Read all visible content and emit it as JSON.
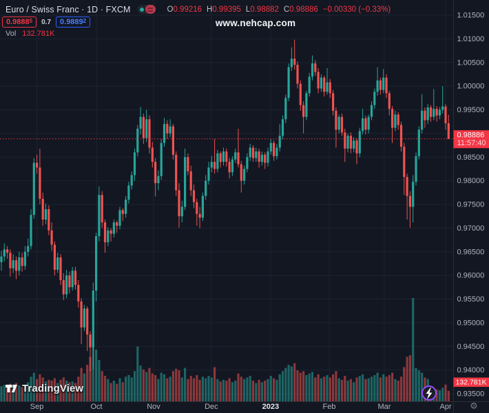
{
  "header": {
    "symbol_title": "Euro / Swiss Franc · 1D · FXCM",
    "ohlc": {
      "o_label": "O",
      "o": "0.99216",
      "h_label": "H",
      "h": "0.99395",
      "l_label": "L",
      "l": "0.98882",
      "c_label": "C",
      "c": "0.98886",
      "change": "−0.00330 (−0.33%)"
    },
    "bid": "0.9888",
    "bid_sup": "5",
    "spread": "0.7",
    "ask": "0.9889",
    "ask_sup": "2",
    "vol_label": "Vol",
    "vol_value": "132.781K",
    "watermark": "www.nehcap.com"
  },
  "logo": {
    "text": "TradingView"
  },
  "colors": {
    "background": "#131722",
    "up": "#26a69a",
    "down": "#ef5350",
    "grid": "#1d2332",
    "axis_border": "#2a2e39",
    "axis_text": "#b2b5be",
    "year_text": "#e4e7ed",
    "badge_red": "#f23645",
    "accent_blue": "#2962ff",
    "gear_gray": "#787b86",
    "lightning_purple": "#9747ff"
  },
  "chart_data": {
    "type": "candlestick",
    "symbol": "Euro / Swiss Franc",
    "timeframe": "1D",
    "exchange": "FXCM",
    "legend_toggle": "candle-color-toggle",
    "price_range": {
      "min": 0.935,
      "max": 1.015,
      "tick_step": 0.005
    },
    "price_ticks": [
      "1.01500",
      "1.01000",
      "1.00500",
      "1.00000",
      "0.99500",
      "0.99000",
      "0.98500",
      "0.98000",
      "0.97500",
      "0.97000",
      "0.96500",
      "0.96000",
      "0.95500",
      "0.95000",
      "0.94500",
      "0.94000",
      "0.93500"
    ],
    "months": [
      {
        "label": "Sep",
        "bar": 12.0
      },
      {
        "label": "Oct",
        "bar": 32.1
      },
      {
        "label": "Nov",
        "bar": 51.4
      },
      {
        "label": "Dec",
        "bar": 70.9
      },
      {
        "label": "2023",
        "bar": 90.9,
        "year": true
      },
      {
        "label": "Feb",
        "bar": 110.7
      },
      {
        "label": "Mar",
        "bar": 129.3
      },
      {
        "label": "Apr",
        "bar": 150.0
      }
    ],
    "last_price": 0.98886,
    "last_change_direction": "down",
    "countdown": "11:57:40",
    "volume_current_label": "132.781K",
    "current_bar_ohlc": {
      "open": 0.99216,
      "high": 0.99395,
      "low": 0.98882,
      "close": 0.98886,
      "change": -0.0033,
      "change_pct": -0.33
    },
    "columns": [
      "open",
      "high",
      "low",
      "close",
      "volume_k"
    ],
    "candles": [
      [
        0.9628,
        0.9652,
        0.961,
        0.964,
        190
      ],
      [
        0.964,
        0.9668,
        0.963,
        0.9655,
        205
      ],
      [
        0.9655,
        0.9662,
        0.9635,
        0.9648,
        175
      ],
      [
        0.9648,
        0.9655,
        0.9598,
        0.9615,
        220
      ],
      [
        0.9615,
        0.9645,
        0.9605,
        0.9632,
        185
      ],
      [
        0.9632,
        0.964,
        0.9592,
        0.961,
        230
      ],
      [
        0.961,
        0.965,
        0.96,
        0.9638,
        200
      ],
      [
        0.9638,
        0.9648,
        0.9608,
        0.962,
        180
      ],
      [
        0.962,
        0.9662,
        0.9612,
        0.965,
        210
      ],
      [
        0.965,
        0.9678,
        0.964,
        0.9662,
        240
      ],
      [
        0.9662,
        0.974,
        0.9655,
        0.9728,
        310
      ],
      [
        0.9728,
        0.9848,
        0.972,
        0.9838,
        360
      ],
      [
        0.9838,
        0.9855,
        0.9815,
        0.9828,
        280
      ],
      [
        0.9828,
        0.9868,
        0.975,
        0.9762,
        340
      ],
      [
        0.9762,
        0.9775,
        0.9705,
        0.9718,
        300
      ],
      [
        0.9718,
        0.9752,
        0.9708,
        0.974,
        250
      ],
      [
        0.974,
        0.9748,
        0.9685,
        0.9695,
        270
      ],
      [
        0.9695,
        0.9712,
        0.9652,
        0.9665,
        260
      ],
      [
        0.9665,
        0.9672,
        0.96,
        0.9612,
        290
      ],
      [
        0.9612,
        0.9648,
        0.9605,
        0.9638,
        230
      ],
      [
        0.9638,
        0.9645,
        0.958,
        0.959,
        270
      ],
      [
        0.959,
        0.9605,
        0.9548,
        0.956,
        300
      ],
      [
        0.956,
        0.9612,
        0.9552,
        0.96,
        260
      ],
      [
        0.96,
        0.9608,
        0.9562,
        0.9575,
        240
      ],
      [
        0.9575,
        0.9618,
        0.9568,
        0.961,
        250
      ],
      [
        0.961,
        0.9618,
        0.957,
        0.958,
        230
      ],
      [
        0.958,
        0.959,
        0.9532,
        0.9545,
        310
      ],
      [
        0.9545,
        0.9552,
        0.9455,
        0.949,
        420
      ],
      [
        0.949,
        0.9538,
        0.9482,
        0.953,
        350
      ],
      [
        0.953,
        0.9535,
        0.944,
        0.9475,
        460
      ],
      [
        0.9475,
        0.9482,
        0.9398,
        0.9448,
        560
      ],
      [
        0.9448,
        0.9585,
        0.9402,
        0.9568,
        780
      ],
      [
        0.9568,
        0.969,
        0.9545,
        0.9683,
        650
      ],
      [
        0.9683,
        0.9788,
        0.9672,
        0.977,
        520
      ],
      [
        0.977,
        0.9778,
        0.97,
        0.9712,
        380
      ],
      [
        0.9712,
        0.9718,
        0.9648,
        0.967,
        320
      ],
      [
        0.967,
        0.9702,
        0.9662,
        0.9695,
        280
      ],
      [
        0.9695,
        0.97,
        0.9672,
        0.9688,
        230
      ],
      [
        0.9688,
        0.9718,
        0.968,
        0.9712,
        260
      ],
      [
        0.9712,
        0.9716,
        0.969,
        0.9705,
        220
      ],
      [
        0.9705,
        0.9745,
        0.9698,
        0.9738,
        290
      ],
      [
        0.9738,
        0.9742,
        0.9715,
        0.973,
        240
      ],
      [
        0.973,
        0.9768,
        0.9722,
        0.976,
        310
      ],
      [
        0.976,
        0.9798,
        0.9752,
        0.979,
        330
      ],
      [
        0.979,
        0.982,
        0.9782,
        0.9812,
        300
      ],
      [
        0.9812,
        0.9868,
        0.98,
        0.986,
        380
      ],
      [
        0.986,
        0.9918,
        0.9852,
        0.991,
        690
      ],
      [
        0.991,
        0.9956,
        0.9898,
        0.9935,
        450
      ],
      [
        0.9935,
        0.9942,
        0.9878,
        0.989,
        400
      ],
      [
        0.989,
        0.995,
        0.9882,
        0.993,
        370
      ],
      [
        0.993,
        0.9938,
        0.9858,
        0.987,
        420
      ],
      [
        0.987,
        0.9882,
        0.9828,
        0.984,
        350
      ],
      [
        0.984,
        0.9848,
        0.9767,
        0.9795,
        330
      ],
      [
        0.9795,
        0.9822,
        0.978,
        0.981,
        280
      ],
      [
        0.981,
        0.9888,
        0.9802,
        0.988,
        360
      ],
      [
        0.988,
        0.9933,
        0.9872,
        0.992,
        340
      ],
      [
        0.992,
        0.9928,
        0.9888,
        0.99,
        290
      ],
      [
        0.99,
        0.993,
        0.9892,
        0.9915,
        310
      ],
      [
        0.9915,
        0.992,
        0.9845,
        0.9855,
        380
      ],
      [
        0.9855,
        0.9862,
        0.9768,
        0.978,
        410
      ],
      [
        0.978,
        0.9795,
        0.9701,
        0.9725,
        390
      ],
      [
        0.9725,
        0.9758,
        0.9712,
        0.9745,
        300
      ],
      [
        0.9745,
        0.9868,
        0.9738,
        0.985,
        420
      ],
      [
        0.985,
        0.9858,
        0.9812,
        0.982,
        280
      ],
      [
        0.982,
        0.9832,
        0.9768,
        0.978,
        320
      ],
      [
        0.978,
        0.9792,
        0.9742,
        0.9755,
        290
      ],
      [
        0.9755,
        0.9762,
        0.9705,
        0.973,
        330
      ],
      [
        0.973,
        0.9745,
        0.97,
        0.9722,
        270
      ],
      [
        0.9722,
        0.9775,
        0.9715,
        0.9768,
        310
      ],
      [
        0.9768,
        0.9812,
        0.976,
        0.98,
        290
      ],
      [
        0.98,
        0.984,
        0.9792,
        0.9828,
        320
      ],
      [
        0.9828,
        0.9852,
        0.9818,
        0.984,
        300
      ],
      [
        0.984,
        0.9888,
        0.9815,
        0.9825,
        430
      ],
      [
        0.9825,
        0.9865,
        0.9818,
        0.9858,
        280
      ],
      [
        0.9858,
        0.9862,
        0.9828,
        0.984,
        250
      ],
      [
        0.984,
        0.987,
        0.9832,
        0.9862,
        270
      ],
      [
        0.9862,
        0.9868,
        0.983,
        0.984,
        260
      ],
      [
        0.984,
        0.9848,
        0.9805,
        0.9818,
        290
      ],
      [
        0.9818,
        0.9852,
        0.981,
        0.9845,
        240
      ],
      [
        0.9845,
        0.9868,
        0.9838,
        0.986,
        260
      ],
      [
        0.986,
        0.991,
        0.9828,
        0.9835,
        350
      ],
      [
        0.9835,
        0.9842,
        0.9775,
        0.98,
        310
      ],
      [
        0.98,
        0.9832,
        0.9792,
        0.9825,
        280
      ],
      [
        0.9825,
        0.9858,
        0.9818,
        0.985,
        300
      ],
      [
        0.985,
        0.9878,
        0.9842,
        0.987,
        320
      ],
      [
        0.987,
        0.9875,
        0.984,
        0.9848,
        260
      ],
      [
        0.9848,
        0.987,
        0.984,
        0.9862,
        230
      ],
      [
        0.9862,
        0.9868,
        0.9828,
        0.984,
        270
      ],
      [
        0.984,
        0.9862,
        0.9832,
        0.9855,
        240
      ],
      [
        0.9855,
        0.986,
        0.9825,
        0.9838,
        260
      ],
      [
        0.9838,
        0.987,
        0.983,
        0.9862,
        280
      ],
      [
        0.9862,
        0.9888,
        0.9855,
        0.988,
        320
      ],
      [
        0.988,
        0.9885,
        0.9842,
        0.9852,
        290
      ],
      [
        0.9852,
        0.9878,
        0.9845,
        0.987,
        270
      ],
      [
        0.987,
        0.992,
        0.9862,
        0.9895,
        340
      ],
      [
        0.9895,
        0.9938,
        0.9888,
        0.993,
        380
      ],
      [
        0.993,
        0.9982,
        0.9922,
        0.9975,
        420
      ],
      [
        0.9975,
        1.0048,
        0.9968,
        1.004,
        460
      ],
      [
        1.004,
        1.0082,
        1.0032,
        1.0058,
        440
      ],
      [
        1.0058,
        1.0098,
        1.0035,
        1.0045,
        480
      ],
      [
        1.0045,
        1.0052,
        0.9995,
        1.0005,
        390
      ],
      [
        1.0005,
        1.0012,
        0.9948,
        0.996,
        360
      ],
      [
        0.996,
        0.9968,
        0.99,
        0.9935,
        380
      ],
      [
        0.9935,
        0.999,
        0.9928,
        0.9985,
        330
      ],
      [
        0.9985,
        1.0028,
        0.9978,
        1.002,
        350
      ],
      [
        1.002,
        1.0065,
        1.0012,
        1.0048,
        370
      ],
      [
        1.0048,
        1.0055,
        1.0022,
        1.003,
        300
      ],
      [
        1.003,
        1.0038,
        0.9985,
        0.9995,
        340
      ],
      [
        0.9995,
        1.0025,
        0.9988,
        1.0018,
        290
      ],
      [
        1.0018,
        1.0022,
        0.9978,
        0.9988,
        310
      ],
      [
        0.9988,
        1.0038,
        0.9982,
        1.0008,
        330
      ],
      [
        1.0008,
        1.0015,
        0.9975,
        0.9985,
        300
      ],
      [
        0.9985,
        0.9992,
        0.9938,
        0.9948,
        340
      ],
      [
        0.9948,
        0.9955,
        0.987,
        0.9908,
        380
      ],
      [
        0.9908,
        0.994,
        0.99,
        0.9935,
        290
      ],
      [
        0.9935,
        0.9942,
        0.9895,
        0.9902,
        270
      ],
      [
        0.9902,
        0.991,
        0.984,
        0.9868,
        320
      ],
      [
        0.9868,
        0.99,
        0.986,
        0.9895,
        260
      ],
      [
        0.9895,
        0.9902,
        0.9858,
        0.9868,
        280
      ],
      [
        0.9868,
        0.9892,
        0.986,
        0.9885,
        240
      ],
      [
        0.9885,
        0.989,
        0.9835,
        0.9858,
        300
      ],
      [
        0.9858,
        0.9912,
        0.985,
        0.9905,
        320
      ],
      [
        0.9905,
        0.9952,
        0.9898,
        0.9932,
        340
      ],
      [
        0.9932,
        0.9938,
        0.9898,
        0.9908,
        280
      ],
      [
        0.9908,
        0.994,
        0.99,
        0.9935,
        290
      ],
      [
        0.9935,
        0.9968,
        0.9928,
        0.996,
        310
      ],
      [
        0.996,
        0.9995,
        0.9952,
        0.9988,
        330
      ],
      [
        0.9988,
        1.004,
        0.998,
        1.0012,
        360
      ],
      [
        1.0012,
        1.0018,
        0.9982,
        0.9992,
        300
      ],
      [
        0.9992,
        1.0036,
        0.9985,
        1.0018,
        340
      ],
      [
        1.0018,
        1.0025,
        0.9975,
        0.9985,
        310
      ],
      [
        0.9985,
        0.999,
        0.9938,
        0.9952,
        330
      ],
      [
        0.9952,
        0.9958,
        0.988,
        0.9912,
        360
      ],
      [
        0.9912,
        0.9948,
        0.9905,
        0.994,
        280
      ],
      [
        0.994,
        0.9945,
        0.9908,
        0.9918,
        260
      ],
      [
        0.9918,
        0.9925,
        0.9862,
        0.9872,
        310
      ],
      [
        0.9872,
        0.988,
        0.977,
        0.9808,
        430
      ],
      [
        0.9808,
        0.9815,
        0.9718,
        0.9768,
        560
      ],
      [
        0.9768,
        0.9778,
        0.9701,
        0.9745,
        580
      ],
      [
        0.9745,
        0.9812,
        0.9712,
        0.9798,
        1300
      ],
      [
        0.9798,
        0.986,
        0.979,
        0.9852,
        420
      ],
      [
        0.9852,
        0.9915,
        0.9845,
        0.9908,
        390
      ],
      [
        0.9908,
        0.9983,
        0.99,
        0.9948,
        360
      ],
      [
        0.9948,
        0.9955,
        0.9912,
        0.9928,
        300
      ],
      [
        0.9928,
        0.9962,
        0.992,
        0.9955,
        280
      ],
      [
        0.9955,
        0.996,
        0.9925,
        0.9935,
        180
      ],
      [
        0.9935,
        0.9994,
        0.9928,
        0.9952,
        160
      ],
      [
        0.9952,
        0.9958,
        0.9925,
        0.9938,
        150
      ],
      [
        0.9938,
        0.9956,
        0.993,
        0.995,
        140
      ],
      [
        0.995,
        1.0,
        0.9942,
        0.9957,
        170
      ],
      [
        0.9957,
        0.9962,
        0.9908,
        0.99216,
        210
      ],
      [
        0.99216,
        0.99395,
        0.98882,
        0.98886,
        132.781
      ]
    ]
  }
}
